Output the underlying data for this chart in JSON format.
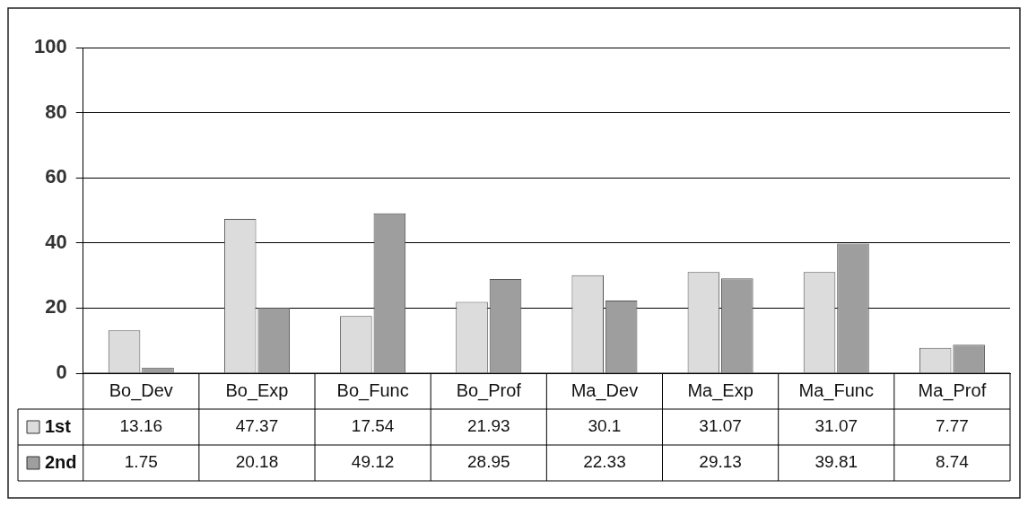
{
  "chart_data": {
    "type": "bar",
    "categories": [
      "Bo_Dev",
      "Bo_Exp",
      "Bo_Func",
      "Bo_Prof",
      "Ma_Dev",
      "Ma_Exp",
      "Ma_Func",
      "Ma_Prof"
    ],
    "series": [
      {
        "name": "1st",
        "color": "#dcdcdc",
        "values": [
          13.16,
          47.37,
          17.54,
          21.93,
          30.1,
          31.07,
          31.07,
          7.77
        ]
      },
      {
        "name": "2nd",
        "color": "#9e9e9e",
        "values": [
          1.75,
          20.18,
          49.12,
          28.95,
          22.33,
          29.13,
          39.81,
          8.74
        ]
      }
    ],
    "ylim": [
      0,
      100
    ],
    "yticks": [
      0,
      20,
      40,
      60,
      80,
      100
    ],
    "grid": "y",
    "legend": "bottom left",
    "data_labels": true
  }
}
